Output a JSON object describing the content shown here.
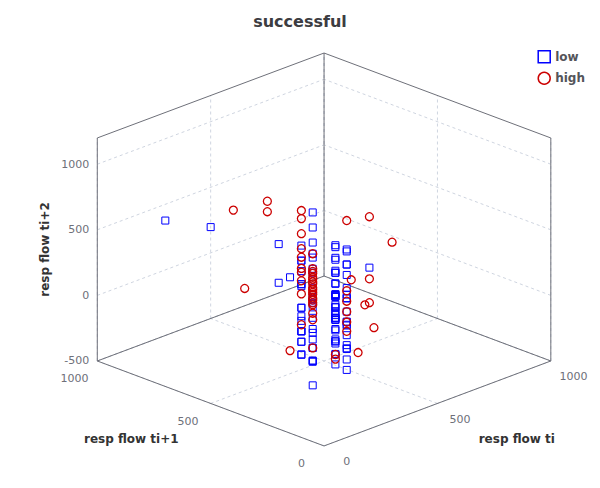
{
  "chart_data": {
    "type": "scatter3d",
    "title": "successful",
    "xlabel": "resp flow ti",
    "ylabel": "resp flow ti+1",
    "zlabel": "resp flow ti+2",
    "xlim": [
      0,
      1000
    ],
    "ylim": [
      0,
      1000
    ],
    "zlim": [
      -500,
      1200
    ],
    "xticks": [
      0,
      500,
      1000
    ],
    "yticks": [
      0,
      500,
      1000
    ],
    "zticks": [
      -500,
      0,
      500,
      1000
    ],
    "grid": true,
    "legend": "upper right",
    "series": [
      {
        "name": "low",
        "color": "#0000FF",
        "marker": "square",
        "values": [
          [
            200,
            400,
            650
          ],
          [
            150,
            350,
            420
          ],
          [
            300,
            450,
            300
          ],
          [
            400,
            500,
            250
          ],
          [
            250,
            300,
            200
          ],
          [
            350,
            400,
            150
          ],
          [
            200,
            250,
            100
          ],
          [
            300,
            350,
            200
          ],
          [
            400,
            450,
            300
          ],
          [
            450,
            500,
            350
          ],
          [
            350,
            300,
            400
          ],
          [
            250,
            200,
            350
          ],
          [
            150,
            100,
            300
          ],
          [
            200,
            150,
            250
          ],
          [
            300,
            250,
            200
          ],
          [
            400,
            350,
            150
          ],
          [
            450,
            400,
            100
          ],
          [
            350,
            300,
            50
          ],
          [
            250,
            200,
            100
          ],
          [
            150,
            100,
            150
          ],
          [
            100,
            150,
            200
          ],
          [
            200,
            250,
            300
          ],
          [
            300,
            350,
            400
          ],
          [
            400,
            450,
            500
          ],
          [
            500,
            550,
            600
          ],
          [
            450,
            500,
            550
          ],
          [
            350,
            400,
            450
          ],
          [
            250,
            300,
            350
          ],
          [
            150,
            200,
            250
          ],
          [
            100,
            150,
            150
          ],
          [
            200,
            100,
            50
          ],
          [
            300,
            200,
            100
          ],
          [
            400,
            300,
            200
          ],
          [
            500,
            400,
            300
          ],
          [
            550,
            450,
            350
          ],
          [
            500,
            400,
            400
          ],
          [
            400,
            300,
            350
          ],
          [
            300,
            200,
            300
          ],
          [
            200,
            100,
            250
          ],
          [
            100,
            50,
            200
          ],
          [
            50,
            100,
            150
          ],
          [
            100,
            200,
            100
          ],
          [
            200,
            300,
            50
          ],
          [
            300,
            400,
            100
          ],
          [
            400,
            500,
            150
          ],
          [
            500,
            600,
            200
          ],
          [
            550,
            650,
            250
          ],
          [
            500,
            600,
            200
          ],
          [
            400,
            500,
            150
          ],
          [
            300,
            400,
            100
          ],
          [
            200,
            300,
            50
          ],
          [
            100,
            200,
            0
          ],
          [
            50,
            100,
            50
          ],
          [
            100,
            50,
            100
          ],
          [
            200,
            100,
            150
          ],
          [
            300,
            200,
            200
          ],
          [
            400,
            300,
            250
          ],
          [
            500,
            400,
            300
          ],
          [
            550,
            500,
            350
          ],
          [
            500,
            450,
            400
          ],
          [
            400,
            350,
            350
          ],
          [
            300,
            250,
            300
          ],
          [
            200,
            150,
            250
          ],
          [
            100,
            50,
            200
          ],
          [
            50,
            100,
            150
          ],
          [
            100,
            200,
            100
          ],
          [
            200,
            300,
            50
          ],
          [
            300,
            400,
            0
          ],
          [
            250,
            350,
            100
          ],
          [
            350,
            450,
            200
          ],
          [
            200,
            150,
            300
          ],
          [
            150,
            100,
            350
          ],
          [
            100,
            50,
            400
          ],
          [
            200,
            150,
            350
          ],
          [
            300,
            250,
            300
          ],
          [
            400,
            350,
            250
          ],
          [
            380,
            280,
            200
          ],
          [
            280,
            180,
            150
          ],
          [
            180,
            80,
            100
          ],
          [
            80,
            30,
            50
          ],
          [
            180,
            130,
            80
          ],
          [
            280,
            230,
            130
          ],
          [
            380,
            330,
            180
          ],
          [
            480,
            430,
            230
          ],
          [
            530,
            480,
            280
          ],
          [
            480,
            430,
            330
          ],
          [
            380,
            330,
            280
          ],
          [
            280,
            230,
            230
          ],
          [
            180,
            130,
            180
          ],
          [
            80,
            30,
            130
          ],
          [
            30,
            80,
            80
          ],
          [
            80,
            180,
            30
          ],
          [
            450,
            350,
            -100
          ],
          [
            350,
            250,
            -150
          ],
          [
            250,
            150,
            -100
          ],
          [
            150,
            50,
            -50
          ],
          [
            100,
            150,
            -200
          ],
          [
            200,
            250,
            -150
          ],
          [
            300,
            100,
            600
          ],
          [
            150,
            650,
            650
          ],
          [
            50,
            750,
            700
          ]
        ]
      },
      {
        "name": "high",
        "color": "#CC0000",
        "marker": "circle",
        "values": [
          [
            300,
            400,
            550
          ],
          [
            250,
            500,
            800
          ],
          [
            350,
            600,
            750
          ],
          [
            200,
            300,
            500
          ],
          [
            400,
            500,
            650
          ],
          [
            150,
            250,
            400
          ],
          [
            100,
            200,
            1100
          ],
          [
            300,
            700,
            650
          ],
          [
            450,
            350,
            700
          ],
          [
            350,
            450,
            600
          ],
          [
            250,
            350,
            550
          ],
          [
            150,
            250,
            500
          ],
          [
            100,
            150,
            450
          ],
          [
            200,
            250,
            400
          ],
          [
            300,
            350,
            350
          ],
          [
            400,
            450,
            300
          ],
          [
            450,
            500,
            350
          ],
          [
            350,
            400,
            300
          ],
          [
            250,
            300,
            350
          ],
          [
            150,
            200,
            400
          ],
          [
            100,
            150,
            350
          ],
          [
            200,
            250,
            300
          ],
          [
            300,
            350,
            250
          ],
          [
            400,
            450,
            200
          ],
          [
            500,
            550,
            150
          ],
          [
            450,
            500,
            200
          ],
          [
            350,
            400,
            250
          ],
          [
            250,
            300,
            300
          ],
          [
            150,
            200,
            350
          ],
          [
            100,
            150,
            300
          ],
          [
            200,
            100,
            250
          ],
          [
            300,
            200,
            200
          ],
          [
            400,
            300,
            150
          ],
          [
            500,
            400,
            100
          ],
          [
            200,
            50,
            50
          ],
          [
            150,
            100,
            0
          ],
          [
            300,
            200,
            50
          ],
          [
            100,
            50,
            100
          ],
          [
            50,
            100,
            150
          ],
          [
            300,
            400,
            400
          ],
          [
            500,
            200,
            600
          ],
          [
            200,
            300,
            100
          ],
          [
            100,
            250,
            0
          ],
          [
            350,
            150,
            450
          ],
          [
            420,
            300,
            300
          ],
          [
            380,
            200,
            200
          ],
          [
            480,
            280,
            100
          ],
          [
            420,
            200,
            0
          ],
          [
            600,
            400,
            600
          ],
          [
            250,
            600,
            150
          ]
        ]
      }
    ]
  }
}
